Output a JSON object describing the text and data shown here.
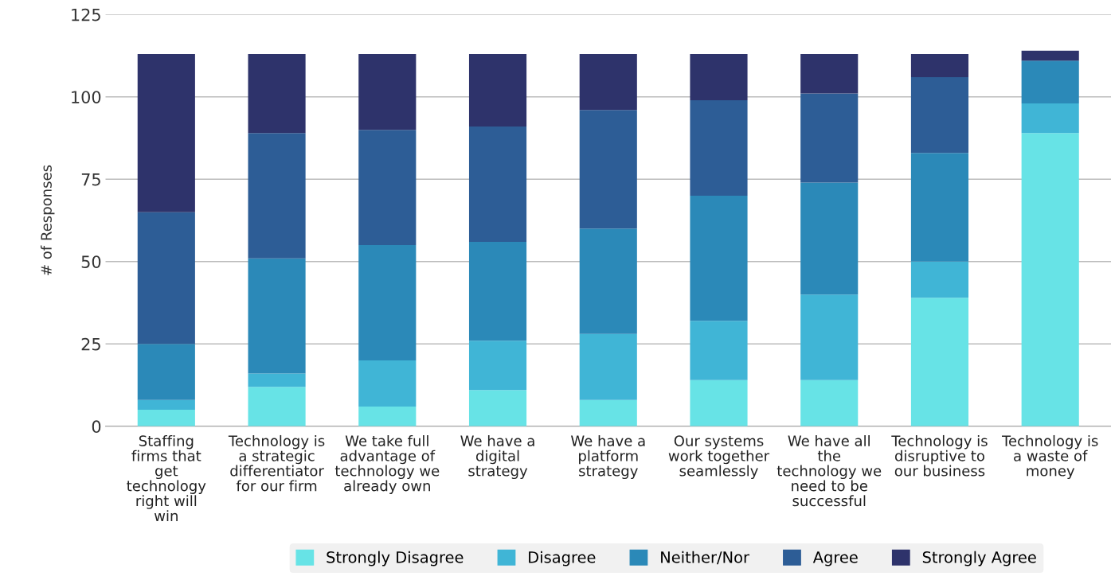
{
  "chart_data": {
    "type": "bar",
    "stacked": true,
    "ylabel": "# of Responses",
    "categories": [
      "Staffing firms that get technology right will win",
      "Technology is a strategic differentiator for our firm",
      "We take full advantage of technology we already own",
      "We have a digital strategy",
      "We have a platform strategy",
      "Our systems work together seamlessly",
      "We have all the technology we need to be successful",
      "Technology is disruptive to our business",
      "Technology is a waste of money"
    ],
    "series": [
      {
        "name": "Strongly Disagree",
        "color": "#67e3e6",
        "values": [
          5,
          12,
          6,
          11,
          8,
          14,
          14,
          39,
          89
        ]
      },
      {
        "name": "Disagree",
        "color": "#40b5d6",
        "values": [
          3,
          4,
          14,
          15,
          20,
          18,
          26,
          11,
          9
        ]
      },
      {
        "name": "Neither/Nor",
        "color": "#2b89b8",
        "values": [
          17,
          35,
          35,
          30,
          32,
          38,
          34,
          33,
          13
        ]
      },
      {
        "name": "Agree",
        "color": "#2d5d96",
        "values": [
          40,
          38,
          35,
          35,
          36,
          29,
          27,
          23,
          0
        ]
      },
      {
        "name": "Strongly Agree",
        "color": "#2e336b",
        "values": [
          48,
          24,
          23,
          22,
          17,
          14,
          12,
          7,
          3
        ]
      }
    ],
    "ylim": [
      0,
      125
    ],
    "yticks": [
      0,
      25,
      50,
      75,
      100,
      125
    ],
    "grid": "y",
    "legend": "bottom"
  }
}
